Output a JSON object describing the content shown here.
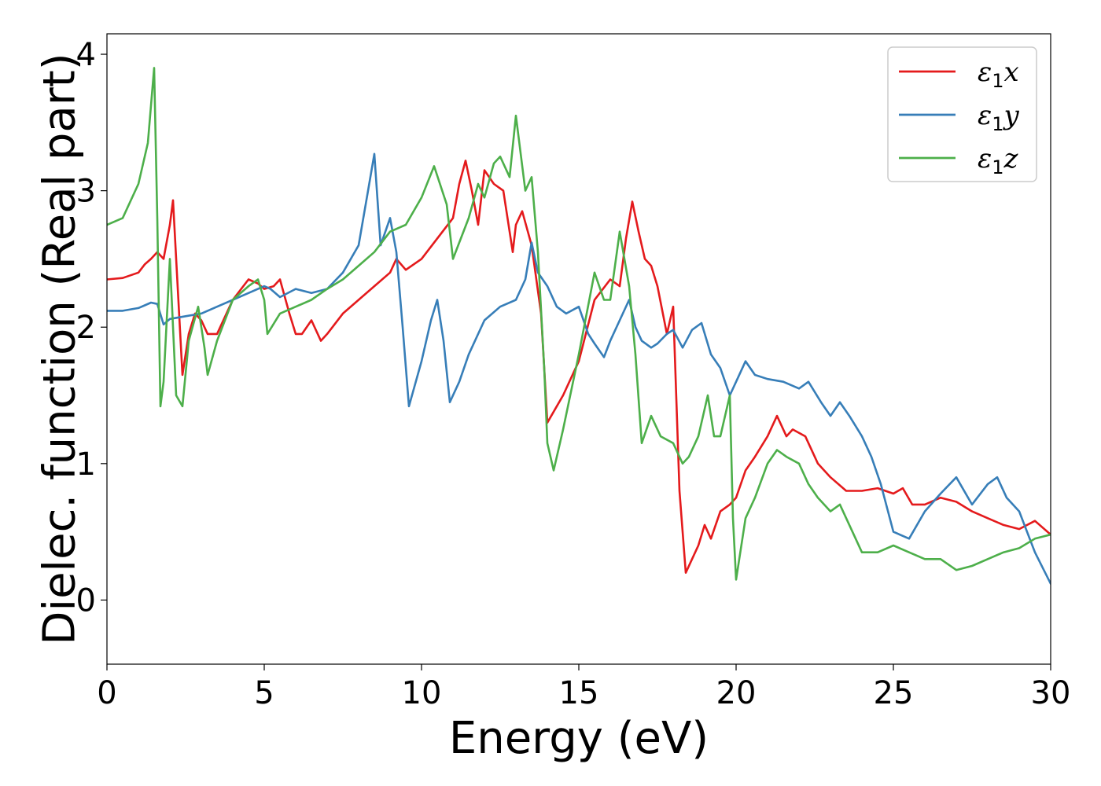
{
  "chart_data": {
    "type": "line",
    "xlabel": "Energy (eV)",
    "ylabel": "Dielec. function (Real part)",
    "xlim": [
      0,
      30
    ],
    "ylim": [
      -0.47,
      4.15
    ],
    "xticks": [
      0,
      5,
      10,
      15,
      20,
      25,
      30
    ],
    "yticks": [
      0,
      1,
      2,
      3,
      4
    ],
    "grid": false,
    "legend_position": "top-right",
    "series": [
      {
        "name": "ε₁x",
        "legend_main": "ε",
        "legend_sub": "1",
        "legend_axis": "x",
        "color": "#e41a1c",
        "x": [
          0,
          0.5,
          1,
          1.2,
          1.4,
          1.6,
          1.8,
          2.0,
          2.1,
          2.2,
          2.4,
          2.6,
          2.8,
          3.0,
          3.2,
          3.5,
          4.0,
          4.5,
          4.8,
          5.0,
          5.3,
          5.5,
          5.8,
          6.0,
          6.2,
          6.5,
          6.8,
          7.0,
          7.5,
          8.0,
          8.5,
          9.0,
          9.2,
          9.5,
          10.0,
          10.5,
          11.0,
          11.2,
          11.4,
          11.6,
          11.8,
          12.0,
          12.3,
          12.6,
          12.9,
          13.0,
          13.2,
          13.5,
          13.8,
          14.0,
          14.5,
          15.0,
          15.5,
          16.0,
          16.3,
          16.5,
          16.7,
          16.9,
          17.1,
          17.3,
          17.5,
          17.8,
          18.0,
          18.2,
          18.4,
          18.6,
          18.8,
          19.0,
          19.2,
          19.5,
          19.8,
          20.0,
          20.3,
          20.6,
          21.0,
          21.3,
          21.6,
          21.8,
          22.2,
          22.6,
          23.0,
          23.5,
          24.0,
          24.5,
          25.0,
          25.3,
          25.6,
          26.0,
          26.5,
          27.0,
          27.5,
          28.0,
          28.5,
          29.0,
          29.5,
          30
        ],
        "y": [
          2.35,
          2.36,
          2.4,
          2.46,
          2.5,
          2.55,
          2.5,
          2.75,
          2.93,
          2.5,
          1.65,
          1.95,
          2.1,
          2.05,
          1.95,
          1.95,
          2.2,
          2.35,
          2.32,
          2.28,
          2.3,
          2.35,
          2.1,
          1.95,
          1.95,
          2.05,
          1.9,
          1.95,
          2.1,
          2.2,
          2.3,
          2.4,
          2.5,
          2.42,
          2.5,
          2.65,
          2.8,
          3.05,
          3.22,
          3.0,
          2.75,
          3.15,
          3.05,
          3.0,
          2.55,
          2.75,
          2.85,
          2.6,
          2.1,
          1.3,
          1.5,
          1.75,
          2.2,
          2.35,
          2.3,
          2.65,
          2.92,
          2.7,
          2.5,
          2.45,
          2.3,
          1.95,
          2.15,
          0.8,
          0.2,
          0.3,
          0.4,
          0.55,
          0.45,
          0.65,
          0.7,
          0.75,
          0.95,
          1.05,
          1.2,
          1.35,
          1.2,
          1.25,
          1.2,
          1.0,
          0.9,
          0.8,
          0.8,
          0.82,
          0.78,
          0.82,
          0.7,
          0.7,
          0.75,
          0.72,
          0.65,
          0.6,
          0.55,
          0.52,
          0.58,
          0.48
        ]
      },
      {
        "name": "ε₁y",
        "legend_main": "ε",
        "legend_sub": "1",
        "legend_axis": "y",
        "color": "#377eb8",
        "x": [
          0,
          0.5,
          1,
          1.2,
          1.4,
          1.6,
          1.8,
          2.0,
          2.5,
          3.0,
          3.5,
          4.0,
          4.5,
          5.0,
          5.2,
          5.5,
          6.0,
          6.5,
          7.0,
          7.5,
          8.0,
          8.3,
          8.5,
          8.7,
          9.0,
          9.2,
          9.4,
          9.6,
          10.0,
          10.3,
          10.5,
          10.7,
          10.9,
          11.2,
          11.5,
          12.0,
          12.5,
          13.0,
          13.3,
          13.5,
          13.7,
          14.0,
          14.3,
          14.6,
          15.0,
          15.3,
          15.5,
          15.8,
          16.0,
          16.3,
          16.6,
          16.8,
          17.0,
          17.3,
          17.5,
          17.8,
          18.0,
          18.3,
          18.6,
          18.9,
          19.2,
          19.5,
          19.8,
          20.0,
          20.3,
          20.6,
          21.0,
          21.5,
          22.0,
          22.3,
          22.7,
          23.0,
          23.3,
          23.6,
          24.0,
          24.3,
          24.6,
          25.0,
          25.5,
          26.0,
          26.5,
          27.0,
          27.5,
          28.0,
          28.3,
          28.6,
          29.0,
          29.5,
          30
        ],
        "y": [
          2.12,
          2.12,
          2.14,
          2.16,
          2.18,
          2.17,
          2.02,
          2.06,
          2.08,
          2.1,
          2.15,
          2.2,
          2.25,
          2.3,
          2.28,
          2.22,
          2.28,
          2.25,
          2.28,
          2.4,
          2.6,
          3.0,
          3.27,
          2.6,
          2.8,
          2.55,
          2.0,
          1.42,
          1.75,
          2.05,
          2.2,
          1.9,
          1.45,
          1.6,
          1.8,
          2.05,
          2.15,
          2.2,
          2.35,
          2.62,
          2.4,
          2.3,
          2.15,
          2.1,
          2.15,
          1.95,
          1.88,
          1.78,
          1.9,
          2.05,
          2.2,
          2.0,
          1.9,
          1.85,
          1.88,
          1.95,
          1.98,
          1.85,
          1.98,
          2.03,
          1.8,
          1.7,
          1.5,
          1.6,
          1.75,
          1.65,
          1.62,
          1.6,
          1.55,
          1.6,
          1.45,
          1.35,
          1.45,
          1.35,
          1.2,
          1.05,
          0.85,
          0.5,
          0.45,
          0.65,
          0.78,
          0.9,
          0.7,
          0.85,
          0.9,
          0.75,
          0.65,
          0.35,
          0.12
        ]
      },
      {
        "name": "ε₁z",
        "legend_main": "ε",
        "legend_sub": "1",
        "legend_axis": "z",
        "color": "#4daf4a",
        "x": [
          0,
          0.5,
          1.0,
          1.3,
          1.5,
          1.6,
          1.7,
          1.8,
          2.0,
          2.2,
          2.4,
          2.6,
          2.9,
          3.1,
          3.2,
          3.5,
          4.0,
          4.5,
          4.8,
          5.0,
          5.1,
          5.5,
          6.0,
          6.5,
          7.0,
          7.5,
          8.0,
          8.5,
          9.0,
          9.5,
          10.0,
          10.4,
          10.8,
          11.0,
          11.5,
          11.8,
          12.0,
          12.3,
          12.5,
          12.8,
          13.0,
          13.3,
          13.5,
          13.7,
          13.9,
          14.0,
          14.2,
          14.5,
          15.0,
          15.5,
          15.8,
          16.0,
          16.3,
          16.6,
          16.8,
          17.0,
          17.3,
          17.6,
          18.0,
          18.3,
          18.5,
          18.8,
          19.1,
          19.3,
          19.5,
          19.8,
          19.9,
          20.0,
          20.3,
          20.6,
          21.0,
          21.3,
          21.6,
          22.0,
          22.3,
          22.6,
          23.0,
          23.3,
          23.6,
          24.0,
          24.5,
          25.0,
          25.5,
          26.0,
          26.5,
          27.0,
          27.5,
          28.0,
          28.5,
          29.0,
          29.5,
          30
        ],
        "y": [
          2.75,
          2.8,
          3.05,
          3.35,
          3.9,
          2.8,
          1.42,
          1.6,
          2.5,
          1.5,
          1.42,
          1.9,
          2.15,
          1.85,
          1.65,
          1.9,
          2.2,
          2.3,
          2.35,
          2.2,
          1.95,
          2.1,
          2.15,
          2.2,
          2.28,
          2.35,
          2.45,
          2.55,
          2.7,
          2.75,
          2.95,
          3.18,
          2.9,
          2.5,
          2.8,
          3.05,
          2.95,
          3.2,
          3.25,
          3.1,
          3.55,
          3.0,
          3.1,
          2.55,
          1.7,
          1.15,
          0.95,
          1.25,
          1.8,
          2.4,
          2.2,
          2.2,
          2.7,
          2.3,
          1.8,
          1.15,
          1.35,
          1.2,
          1.15,
          1.0,
          1.05,
          1.2,
          1.5,
          1.2,
          1.2,
          1.5,
          0.6,
          0.15,
          0.6,
          0.75,
          1.0,
          1.1,
          1.05,
          1.0,
          0.85,
          0.75,
          0.65,
          0.7,
          0.55,
          0.35,
          0.35,
          0.4,
          0.35,
          0.3,
          0.3,
          0.22,
          0.25,
          0.3,
          0.35,
          0.38,
          0.45,
          0.48
        ]
      }
    ]
  }
}
